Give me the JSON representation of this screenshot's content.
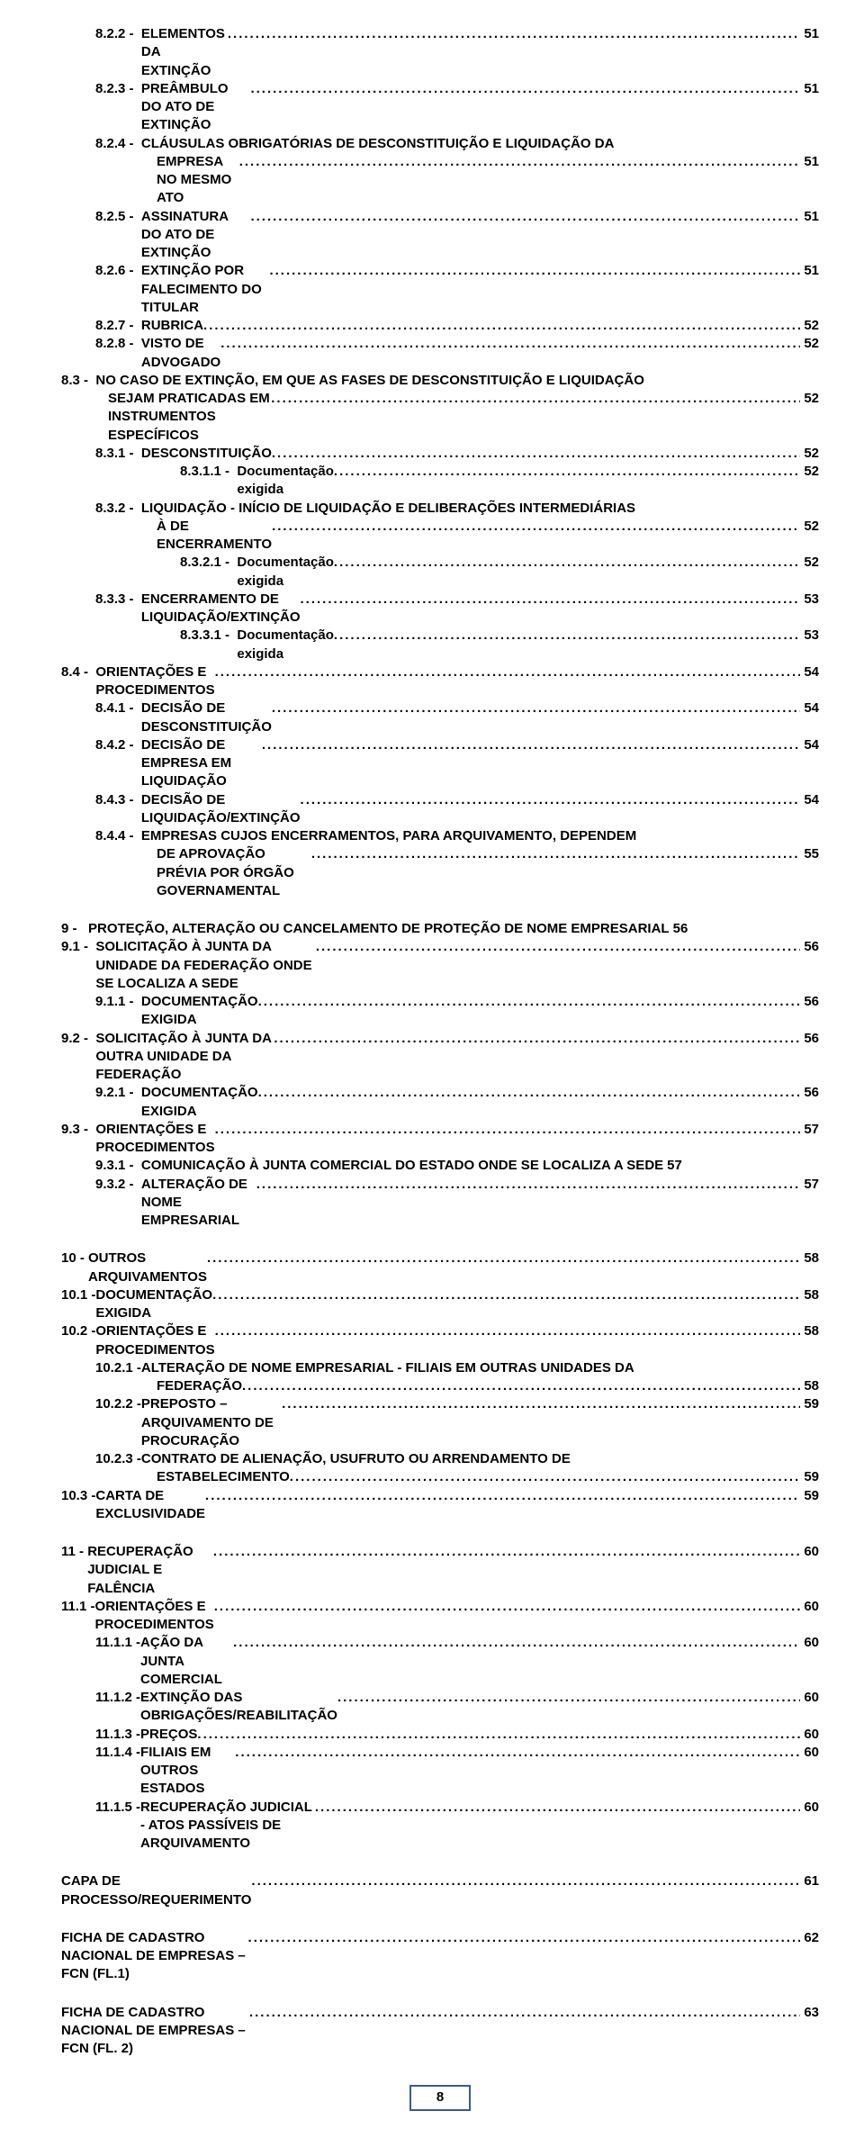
{
  "footer_page": "8",
  "groups": [
    {
      "lines": [
        {
          "indent": 1,
          "prefix": "8.2.2 -  ",
          "label": "ELEMENTOS DA EXTINÇÃO",
          "page": "51"
        },
        {
          "indent": 1,
          "prefix": "8.2.3 -  ",
          "label": "PREÂMBULO DO ATO DE EXTINÇÃO",
          "page": "51"
        },
        {
          "indent": 1,
          "prefix": "8.2.4 -  ",
          "label": "CLÁUSULAS OBRIGATÓRIAS DE DESCONSTITUIÇÃO E LIQUIDAÇÃO DA"
        },
        {
          "indent": 0,
          "wrap": "wrap-ind",
          "label": "EMPRESA NO MESMO ATO",
          "page": "51"
        },
        {
          "indent": 1,
          "prefix": "8.2.5 -  ",
          "label": "ASSINATURA DO ATO DE EXTINÇÃO",
          "page": "51"
        },
        {
          "indent": 1,
          "prefix": "8.2.6 -  ",
          "label": "EXTINÇÃO POR FALECIMENTO DO TITULAR",
          "page": "51"
        },
        {
          "indent": 1,
          "prefix": "8.2.7 -  ",
          "label": "RUBRICA",
          "page": "52"
        },
        {
          "indent": 1,
          "prefix": "8.2.8 -  ",
          "label": "VISTO DE ADVOGADO",
          "page": "52"
        },
        {
          "indent": 0,
          "prefix": "8.3 -  ",
          "label": "NO CASO DE EXTINÇÃO, EM QUE AS FASES DE DESCONSTITUIÇÃO E LIQUIDAÇÃO"
        },
        {
          "indent": 0,
          "wrap": "wrap-ind0b",
          "customPad": 52,
          "label": "SEJAM PRATICADAS EM INSTRUMENTOS ESPECÍFICOS",
          "page": "52"
        },
        {
          "indent": 1,
          "prefix": "8.3.1 -  ",
          "label": "DESCONSTITUIÇÃO",
          "page": "52"
        },
        {
          "indent": 3,
          "prefix": "8.3.1.1 -  ",
          "label": "Documentação exigida",
          "page": "52"
        },
        {
          "indent": 1,
          "prefix": "8.3.2 -  ",
          "label": "LIQUIDAÇÃO - INÍCIO DE LIQUIDAÇÃO E DELIBERAÇÕES INTERMEDIÁRIAS"
        },
        {
          "indent": 0,
          "wrap": "wrap-ind",
          "label": "À DE ENCERRAMENTO",
          "page": "52"
        },
        {
          "indent": 3,
          "prefix": "8.3.2.1 -  ",
          "label": "Documentação exigida",
          "page": "52"
        },
        {
          "indent": 1,
          "prefix": "8.3.3 -  ",
          "label": "ENCERRAMENTO DE LIQUIDAÇÃO/EXTINÇÃO",
          "page": "53"
        },
        {
          "indent": 3,
          "prefix": "8.3.3.1 -  ",
          "label": "Documentação exigida",
          "page": "53"
        },
        {
          "indent": 0,
          "prefix": "8.4 -  ",
          "label": "ORIENTAÇÕES E PROCEDIMENTOS",
          "page": "54"
        },
        {
          "indent": 1,
          "prefix": "8.4.1 -  ",
          "label": "DECISÃO DE DESCONSTITUIÇÃO",
          "page": "54"
        },
        {
          "indent": 1,
          "prefix": "8.4.2 -  ",
          "label": "DECISÃO DE EMPRESA EM LIQUIDAÇÃO",
          "page": "54"
        },
        {
          "indent": 1,
          "prefix": "8.4.3 -  ",
          "label": "DECISÃO DE LIQUIDAÇÃO/EXTINÇÃO",
          "page": "54"
        },
        {
          "indent": 1,
          "prefix": "8.4.4 -  ",
          "label": "EMPRESAS CUJOS ENCERRAMENTOS, PARA ARQUIVAMENTO, DEPENDEM"
        },
        {
          "indent": 0,
          "wrap": "wrap-ind",
          "label": "DE APROVAÇÃO PRÉVIA POR ÓRGÃO GOVERNAMENTAL",
          "page": "55"
        }
      ]
    },
    {
      "lines": [
        {
          "indent": 0,
          "prefix": "9 -   ",
          "label": "PROTEÇÃO, ALTERAÇÃO OU CANCELAMENTO DE PROTEÇÃO DE NOME EMPRESARIAL",
          "page": "56",
          "tight": true
        },
        {
          "indent": 0,
          "prefix": "9.1 -  ",
          "label": "SOLICITAÇÃO À JUNTA DA UNIDADE DA FEDERAÇÃO ONDE SE LOCALIZA A SEDE",
          "page": "56"
        },
        {
          "indent": 1,
          "prefix": "9.1.1 -  ",
          "label": "DOCUMENTAÇÃO EXIGIDA",
          "page": "56"
        },
        {
          "indent": 0,
          "prefix": "9.2 -  ",
          "label": "SOLICITAÇÃO À JUNTA DA OUTRA UNIDADE DA FEDERAÇÃO",
          "page": "56"
        },
        {
          "indent": 1,
          "prefix": "9.2.1 -  ",
          "label": "DOCUMENTAÇÃO EXIGIDA",
          "page": "56"
        },
        {
          "indent": 0,
          "prefix": "9.3 -  ",
          "label": "ORIENTAÇÕES E PROCEDIMENTOS",
          "page": "57"
        },
        {
          "indent": 1,
          "prefix": "9.3.1 -  ",
          "label": "COMUNICAÇÃO À JUNTA COMERCIAL DO ESTADO ONDE SE LOCALIZA A SEDE",
          "page": "57",
          "tight": true
        },
        {
          "indent": 1,
          "prefix": "9.3.2 -  ",
          "label": "ALTERAÇÃO DE NOME EMPRESARIAL",
          "page": "57"
        }
      ]
    },
    {
      "lines": [
        {
          "indent": 0,
          "prefix": "10 - ",
          "label": "OUTROS ARQUIVAMENTOS",
          "page": "58"
        },
        {
          "indent": 0,
          "prefix": "10.1 -",
          "label": "DOCUMENTAÇÃO EXIGIDA",
          "page": "58"
        },
        {
          "indent": 0,
          "prefix": "10.2 -",
          "label": "ORIENTAÇÕES E PROCEDIMENTOS",
          "page": "58"
        },
        {
          "indent": 1,
          "prefix": "10.2.1 -",
          "label": "ALTERAÇÃO DE NOME EMPRESARIAL - FILIAIS EM OUTRAS UNIDADES DA"
        },
        {
          "indent": 0,
          "wrap": "wrap-ind",
          "label": "FEDERAÇÃO",
          "page": "58"
        },
        {
          "indent": 1,
          "prefix": "10.2.2 -",
          "label": "PREPOSTO – ARQUIVAMENTO DE PROCURAÇÃO",
          "page": "59"
        },
        {
          "indent": 1,
          "prefix": "10.2.3 -",
          "label": "CONTRATO DE ALIENAÇÃO, USUFRUTO OU ARRENDAMENTO DE"
        },
        {
          "indent": 0,
          "wrap": "wrap-ind",
          "label": "ESTABELECIMENTO",
          "page": "59"
        },
        {
          "indent": 0,
          "prefix": "10.3 -",
          "label": "CARTA DE EXCLUSIVIDADE",
          "page": "59"
        }
      ]
    },
    {
      "lines": [
        {
          "indent": 0,
          "prefix": "11 - ",
          "label": "RECUPERAÇÃO JUDICIAL E FALÊNCIA",
          "page": "60"
        },
        {
          "indent": 0,
          "prefix": "11.1 -",
          "label": "ORIENTAÇÕES E PROCEDIMENTOS",
          "page": "60"
        },
        {
          "indent": 1,
          "prefix": "11.1.1 -",
          "label": "AÇÃO DA JUNTA COMERCIAL",
          "page": "60"
        },
        {
          "indent": 1,
          "prefix": "11.1.2 -",
          "label": "EXTINÇÃO DAS OBRIGAÇÕES/REABILITAÇÃO",
          "page": "60"
        },
        {
          "indent": 1,
          "prefix": "11.1.3 -",
          "label": "PREÇOS",
          "page": "60"
        },
        {
          "indent": 1,
          "prefix": "11.1.4 -",
          "label": "FILIAIS EM OUTROS ESTADOS",
          "page": "60"
        },
        {
          "indent": 1,
          "prefix": "11.1.5 -",
          "label": "RECUPERAÇÃO JUDICIAL - ATOS PASSÍVEIS DE ARQUIVAMENTO",
          "page": "60"
        }
      ]
    },
    {
      "lines": [
        {
          "indent": 0,
          "prefix": "",
          "label": "CAPA DE PROCESSO/REQUERIMENTO",
          "page": "61"
        }
      ]
    },
    {
      "lines": [
        {
          "indent": 0,
          "prefix": "",
          "label": "FICHA DE CADASTRO NACIONAL DE EMPRESAS – FCN (FL.1)",
          "page": "62"
        }
      ]
    },
    {
      "lines": [
        {
          "indent": 0,
          "prefix": "",
          "label": "FICHA DE CADASTRO NACIONAL DE EMPRESAS – FCN (FL. 2)",
          "page": "63"
        }
      ]
    }
  ]
}
